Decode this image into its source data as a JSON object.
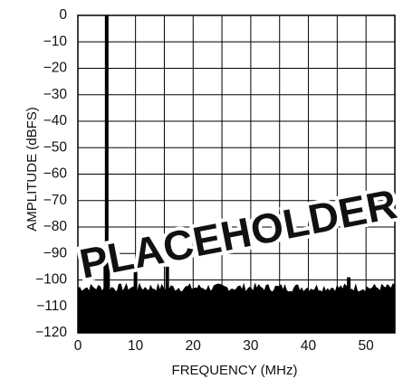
{
  "chart_data": {
    "type": "line",
    "xlabel": "FREQUENCY (MHz)",
    "ylabel": "AMPLITUDE (dBFS)",
    "xlim": [
      0,
      55
    ],
    "ylim": [
      -120,
      0
    ],
    "x_ticks": [
      0,
      10,
      20,
      30,
      40,
      50
    ],
    "x_tick_labels": [
      "0",
      "10",
      "20",
      "30",
      "40",
      "50"
    ],
    "y_ticks": [
      0,
      -10,
      -20,
      -30,
      -40,
      -50,
      -60,
      -70,
      -80,
      -90,
      -100,
      -110,
      -120
    ],
    "y_tick_labels": [
      "0",
      "−10",
      "−20",
      "−30",
      "−40",
      "−50",
      "−60",
      "−70",
      "−80",
      "−90",
      "−100",
      "−110",
      "−120"
    ],
    "grid": true,
    "noise_floor_dbfs": -103,
    "series": [
      {
        "x": [
          5.0,
          10.0,
          15.5,
          47.0
        ],
        "y": [
          0,
          -95,
          -95,
          -99
        ]
      }
    ],
    "colors": {
      "trace": "#000000",
      "grid": "#000000",
      "background": "#ffffff"
    },
    "watermark": "PLACEHOLDER"
  }
}
